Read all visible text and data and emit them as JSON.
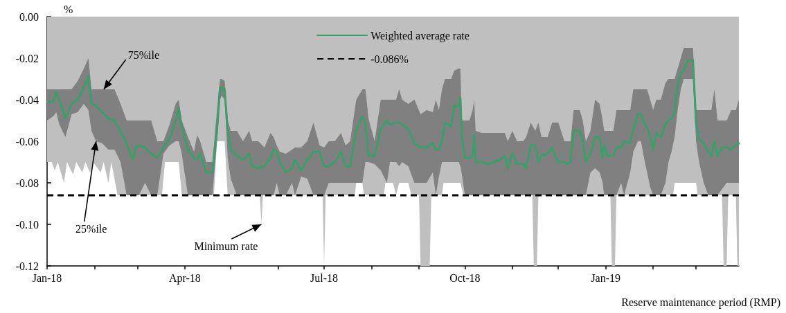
{
  "chart_data": {
    "type": "line",
    "ylabel": "%",
    "xlabel": "Reserve maintenance period (RMP)",
    "xlim": [
      "2018-01-01",
      "2019-03-29"
    ],
    "xticks": [
      {
        "value": "2018-01-01",
        "label": "Jan-18"
      },
      {
        "value": "2018-02-01",
        "label": null
      },
      {
        "value": "2018-03-01",
        "label": null
      },
      {
        "value": "2018-04-01",
        "label": "Apr-18"
      },
      {
        "value": "2018-05-01",
        "label": null
      },
      {
        "value": "2018-06-01",
        "label": null
      },
      {
        "value": "2018-07-01",
        "label": "Jul-18"
      },
      {
        "value": "2018-08-01",
        "label": null
      },
      {
        "value": "2018-09-01",
        "label": null
      },
      {
        "value": "2018-10-01",
        "label": "Oct-18"
      },
      {
        "value": "2018-11-01",
        "label": null
      },
      {
        "value": "2018-12-01",
        "label": null
      },
      {
        "value": "2019-01-01",
        "label": "Jan-19"
      },
      {
        "value": "2019-02-01",
        "label": null
      },
      {
        "value": "2019-03-01",
        "label": null
      }
    ],
    "ylim": [
      -0.12,
      0
    ],
    "yticks": [
      {
        "value": 0,
        "label": "0.00"
      },
      {
        "value": -0.02,
        "label": "-0.02"
      },
      {
        "value": -0.04,
        "label": "-0.04"
      },
      {
        "value": -0.06,
        "label": "-0.06"
      },
      {
        "value": -0.08,
        "label": "-0.08"
      },
      {
        "value": -0.1,
        "label": "-0.10"
      },
      {
        "value": -0.12,
        "label": "-0.12"
      }
    ],
    "legend": "top",
    "series": [
      {
        "type": "area",
        "color": "#bfbfbf",
        "x": [
          "2018-01-01",
          "2018-01-04",
          "2018-01-06",
          "2018-01-08",
          "2018-01-12",
          "2018-01-14",
          "2018-01-18",
          "2018-01-20",
          "2018-01-24",
          "2018-01-26",
          "2018-01-29",
          "2018-01-31",
          "2018-02-05",
          "2018-02-07",
          "2018-02-10",
          "2018-02-12",
          "2018-02-16",
          "2018-03-17",
          "2018-03-19",
          "2018-03-28",
          "2018-03-30",
          "2018-04-20",
          "2018-04-22",
          "2018-04-27",
          "2018-04-29",
          "2018-05-20",
          "2018-05-21",
          "2018-05-22",
          "2018-06-30",
          "2018-07-01",
          "2018-07-02",
          "2018-07-21",
          "2018-07-22",
          "2018-07-26",
          "2018-07-27",
          "2018-08-09",
          "2018-08-10",
          "2018-08-15",
          "2018-08-17",
          "2018-08-19",
          "2018-08-25",
          "2018-08-27",
          "2018-09-01",
          "2018-09-02",
          "2018-09-08",
          "2018-09-09",
          "2018-09-16",
          "2018-09-17",
          "2018-09-28",
          "2018-09-30",
          "2018-11-14",
          "2018-11-15",
          "2018-11-17",
          "2018-11-18",
          "2019-01-04",
          "2019-01-05",
          "2019-01-07",
          "2019-01-08",
          "2019-02-14",
          "2019-02-15",
          "2019-03-01",
          "2019-03-02",
          "2019-03-18",
          "2019-03-19",
          "2019-03-21",
          "2019-03-22",
          "2019-03-27",
          "2019-03-28",
          "2019-03-29"
        ],
        "values": [
          -0.07,
          -0.07,
          -0.074,
          -0.07,
          -0.08,
          -0.07,
          -0.076,
          -0.07,
          -0.075,
          -0.07,
          -0.075,
          -0.07,
          -0.075,
          -0.07,
          -0.08,
          -0.07,
          -0.086,
          -0.086,
          -0.07,
          -0.07,
          -0.086,
          -0.086,
          -0.06,
          -0.06,
          -0.086,
          -0.086,
          -0.1,
          -0.086,
          -0.086,
          -0.12,
          -0.086,
          -0.086,
          -0.08,
          -0.08,
          -0.086,
          -0.086,
          -0.08,
          -0.08,
          -0.086,
          -0.08,
          -0.08,
          -0.086,
          -0.086,
          -0.12,
          -0.12,
          -0.086,
          -0.086,
          -0.08,
          -0.08,
          -0.086,
          -0.086,
          -0.12,
          -0.12,
          -0.086,
          -0.086,
          -0.12,
          -0.12,
          -0.086,
          -0.086,
          -0.08,
          -0.08,
          -0.086,
          -0.086,
          -0.12,
          -0.12,
          -0.086,
          -0.086,
          -0.12,
          -0.12
        ]
      },
      {
        "name": "Weighted average rate",
        "color": "#3a9f6a",
        "x": [
          "2018-01-01",
          "2018-01-05",
          "2018-01-07",
          "2018-01-09",
          "2018-01-13",
          "2018-01-17",
          "2018-01-21",
          "2018-01-25",
          "2018-01-28",
          "2018-01-30",
          "2018-02-02",
          "2018-02-06",
          "2018-02-10",
          "2018-02-14",
          "2018-02-18",
          "2018-02-22",
          "2018-02-26",
          "2018-02-28",
          "2018-03-02",
          "2018-03-06",
          "2018-03-10",
          "2018-03-14",
          "2018-03-18",
          "2018-03-22",
          "2018-03-26",
          "2018-03-28",
          "2018-03-30",
          "2018-04-03",
          "2018-04-07",
          "2018-04-09",
          "2018-04-11",
          "2018-04-15",
          "2018-04-19",
          "2018-04-22",
          "2018-04-24",
          "2018-04-25",
          "2018-04-27",
          "2018-04-29",
          "2018-05-01",
          "2018-05-05",
          "2018-05-09",
          "2018-05-13",
          "2018-05-15",
          "2018-05-19",
          "2018-05-23",
          "2018-05-27",
          "2018-05-29",
          "2018-05-31",
          "2018-06-02",
          "2018-06-06",
          "2018-06-10",
          "2018-06-12",
          "2018-06-16",
          "2018-06-20",
          "2018-06-24",
          "2018-06-28",
          "2018-07-01",
          "2018-07-04",
          "2018-07-08",
          "2018-07-12",
          "2018-07-15",
          "2018-07-18",
          "2018-07-22",
          "2018-07-26",
          "2018-07-28",
          "2018-07-30",
          "2018-08-03",
          "2018-08-07",
          "2018-08-11",
          "2018-08-13",
          "2018-08-17",
          "2018-08-19",
          "2018-08-21",
          "2018-08-25",
          "2018-08-29",
          "2018-09-02",
          "2018-09-06",
          "2018-09-10",
          "2018-09-12",
          "2018-09-14",
          "2018-09-16",
          "2018-09-18",
          "2018-09-22",
          "2018-09-24",
          "2018-09-27",
          "2018-09-28",
          "2018-09-29",
          "2018-10-01",
          "2018-10-04",
          "2018-10-06",
          "2018-10-07",
          "2018-10-08",
          "2018-10-12",
          "2018-10-16",
          "2018-10-20",
          "2018-10-24",
          "2018-10-27",
          "2018-10-29",
          "2018-11-01",
          "2018-11-04",
          "2018-11-08",
          "2018-11-10",
          "2018-11-13",
          "2018-11-16",
          "2018-11-18",
          "2018-11-20",
          "2018-11-24",
          "2018-11-27",
          "2018-12-01",
          "2018-12-05",
          "2018-12-07",
          "2018-12-09",
          "2018-12-11",
          "2018-12-15",
          "2018-12-17",
          "2018-12-19",
          "2018-12-22",
          "2018-12-25",
          "2018-12-28",
          "2018-12-30",
          "2018-12-31",
          "2019-01-02",
          "2019-01-06",
          "2019-01-08",
          "2019-01-11",
          "2019-01-13",
          "2019-01-17",
          "2019-01-19",
          "2019-01-22",
          "2019-01-24",
          "2019-01-26",
          "2019-01-28",
          "2019-01-30",
          "2019-02-01",
          "2019-02-03",
          "2019-02-06",
          "2019-02-09",
          "2019-02-11",
          "2019-02-13",
          "2019-02-15",
          "2019-02-17",
          "2019-02-19",
          "2019-02-21",
          "2019-02-23",
          "2019-02-24",
          "2019-02-26",
          "2019-02-27",
          "2019-03-01",
          "2019-03-03",
          "2019-03-06",
          "2019-03-09",
          "2019-03-11",
          "2019-03-13",
          "2019-03-15",
          "2019-03-18",
          "2019-03-21",
          "2019-03-24",
          "2019-03-27",
          "2019-03-29"
        ],
        "values": [
          -0.041,
          -0.041,
          -0.036,
          -0.04,
          -0.049,
          -0.042,
          -0.04,
          -0.034,
          -0.029,
          -0.042,
          -0.043,
          -0.046,
          -0.049,
          -0.05,
          -0.055,
          -0.061,
          -0.069,
          -0.063,
          -0.062,
          -0.063,
          -0.066,
          -0.068,
          -0.063,
          -0.059,
          -0.05,
          -0.044,
          -0.053,
          -0.064,
          -0.068,
          -0.069,
          -0.066,
          -0.075,
          -0.075,
          -0.055,
          -0.034,
          -0.034,
          -0.035,
          -0.055,
          -0.064,
          -0.067,
          -0.069,
          -0.066,
          -0.072,
          -0.073,
          -0.072,
          -0.068,
          -0.064,
          -0.065,
          -0.07,
          -0.075,
          -0.073,
          -0.069,
          -0.074,
          -0.069,
          -0.065,
          -0.065,
          -0.072,
          -0.072,
          -0.07,
          -0.065,
          -0.072,
          -0.072,
          -0.055,
          -0.048,
          -0.051,
          -0.067,
          -0.067,
          -0.054,
          -0.05,
          -0.052,
          -0.051,
          -0.051,
          -0.052,
          -0.054,
          -0.061,
          -0.063,
          -0.063,
          -0.061,
          -0.064,
          -0.064,
          -0.06,
          -0.051,
          -0.053,
          -0.043,
          -0.043,
          -0.039,
          -0.058,
          -0.068,
          -0.068,
          -0.067,
          -0.057,
          -0.07,
          -0.07,
          -0.071,
          -0.07,
          -0.069,
          -0.067,
          -0.073,
          -0.066,
          -0.071,
          -0.071,
          -0.073,
          -0.062,
          -0.062,
          -0.07,
          -0.067,
          -0.066,
          -0.063,
          -0.07,
          -0.07,
          -0.071,
          -0.07,
          -0.055,
          -0.055,
          -0.06,
          -0.07,
          -0.066,
          -0.058,
          -0.058,
          -0.068,
          -0.062,
          -0.067,
          -0.067,
          -0.063,
          -0.063,
          -0.06,
          -0.061,
          -0.054,
          -0.047,
          -0.047,
          -0.051,
          -0.053,
          -0.058,
          -0.064,
          -0.056,
          -0.058,
          -0.052,
          -0.05,
          -0.049,
          -0.046,
          -0.033,
          -0.027,
          -0.026,
          -0.022,
          -0.021,
          -0.021,
          -0.021,
          -0.051,
          -0.059,
          -0.061,
          -0.065,
          -0.067,
          -0.06,
          -0.067,
          -0.063,
          -0.063,
          -0.064,
          -0.062,
          -0.061
        ],
        "upper": [
          -0.035,
          -0.035,
          -0.035,
          -0.035,
          -0.035,
          -0.035,
          -0.031,
          -0.025,
          -0.02,
          -0.035,
          -0.035,
          -0.035,
          -0.035,
          -0.035,
          -0.042,
          -0.05,
          -0.05,
          -0.05,
          -0.05,
          -0.05,
          -0.05,
          -0.06,
          -0.06,
          -0.052,
          -0.042,
          -0.04,
          -0.05,
          -0.058,
          -0.065,
          -0.057,
          -0.06,
          -0.07,
          -0.07,
          -0.045,
          -0.03,
          -0.03,
          -0.031,
          -0.05,
          -0.055,
          -0.055,
          -0.06,
          -0.055,
          -0.06,
          -0.06,
          -0.063,
          -0.056,
          -0.058,
          -0.062,
          -0.065,
          -0.066,
          -0.064,
          -0.063,
          -0.063,
          -0.06,
          -0.051,
          -0.062,
          -0.063,
          -0.06,
          -0.06,
          -0.056,
          -0.062,
          -0.06,
          -0.04,
          -0.035,
          -0.035,
          -0.049,
          -0.06,
          -0.04,
          -0.04,
          -0.04,
          -0.04,
          -0.035,
          -0.04,
          -0.042,
          -0.04,
          -0.047,
          -0.045,
          -0.046,
          -0.04,
          -0.045,
          -0.035,
          -0.03,
          -0.03,
          -0.026,
          -0.025,
          -0.025,
          -0.05,
          -0.05,
          -0.05,
          -0.045,
          -0.04,
          -0.055,
          -0.056,
          -0.056,
          -0.056,
          -0.056,
          -0.056,
          -0.06,
          -0.055,
          -0.06,
          -0.06,
          -0.058,
          -0.051,
          -0.055,
          -0.051,
          -0.058,
          -0.058,
          -0.051,
          -0.051,
          -0.06,
          -0.06,
          -0.06,
          -0.045,
          -0.045,
          -0.05,
          -0.06,
          -0.055,
          -0.04,
          -0.042,
          -0.05,
          -0.055,
          -0.055,
          -0.055,
          -0.045,
          -0.045,
          -0.045,
          -0.045,
          -0.035,
          -0.035,
          -0.035,
          -0.035,
          -0.035,
          -0.04,
          -0.045,
          -0.04,
          -0.04,
          -0.032,
          -0.03,
          -0.03,
          -0.03,
          -0.025,
          -0.02,
          -0.015,
          -0.015,
          -0.015,
          -0.015,
          -0.015,
          -0.045,
          -0.045,
          -0.045,
          -0.045,
          -0.045,
          -0.035,
          -0.05,
          -0.05,
          -0.05,
          -0.045,
          -0.045,
          -0.04
        ],
        "lower": [
          -0.05,
          -0.048,
          -0.046,
          -0.052,
          -0.058,
          -0.047,
          -0.046,
          -0.042,
          -0.045,
          -0.055,
          -0.06,
          -0.061,
          -0.064,
          -0.064,
          -0.07,
          -0.086,
          -0.086,
          -0.086,
          -0.086,
          -0.08,
          -0.086,
          -0.086,
          -0.066,
          -0.062,
          -0.06,
          -0.06,
          -0.066,
          -0.086,
          -0.086,
          -0.086,
          -0.086,
          -0.086,
          -0.086,
          -0.06,
          -0.04,
          -0.038,
          -0.04,
          -0.068,
          -0.078,
          -0.086,
          -0.086,
          -0.086,
          -0.086,
          -0.086,
          -0.086,
          -0.086,
          -0.086,
          -0.08,
          -0.086,
          -0.086,
          -0.08,
          -0.086,
          -0.077,
          -0.078,
          -0.086,
          -0.086,
          -0.086,
          -0.08,
          -0.08,
          -0.08,
          -0.08,
          -0.08,
          -0.08,
          -0.08,
          -0.07,
          -0.07,
          -0.071,
          -0.074,
          -0.08,
          -0.07,
          -0.07,
          -0.072,
          -0.07,
          -0.072,
          -0.08,
          -0.08,
          -0.08,
          -0.075,
          -0.086,
          -0.077,
          -0.07,
          -0.07,
          -0.07,
          -0.07,
          -0.07,
          -0.072,
          -0.076,
          -0.086,
          -0.086,
          -0.086,
          -0.086,
          -0.086,
          -0.086,
          -0.086,
          -0.086,
          -0.086,
          -0.086,
          -0.086,
          -0.086,
          -0.086,
          -0.086,
          -0.086,
          -0.086,
          -0.086,
          -0.086,
          -0.086,
          -0.086,
          -0.086,
          -0.086,
          -0.086,
          -0.086,
          -0.086,
          -0.086,
          -0.086,
          -0.086,
          -0.086,
          -0.075,
          -0.073,
          -0.075,
          -0.08,
          -0.086,
          -0.086,
          -0.086,
          -0.086,
          -0.08,
          -0.086,
          -0.075,
          -0.065,
          -0.06,
          -0.06,
          -0.068,
          -0.075,
          -0.082,
          -0.086,
          -0.086,
          -0.086,
          -0.08,
          -0.07,
          -0.065,
          -0.058,
          -0.045,
          -0.035,
          -0.03,
          -0.03,
          -0.03,
          -0.03,
          -0.03,
          -0.06,
          -0.07,
          -0.08,
          -0.086,
          -0.086,
          -0.086,
          -0.086,
          -0.083,
          -0.08,
          -0.08,
          -0.08,
          -0.08
        ]
      }
    ],
    "ref_lines": [
      {
        "axis": "y",
        "value": -0.086,
        "label": "-0.086%",
        "color": "#000000",
        "line_style": "dashed"
      }
    ],
    "annotations": [
      {
        "text": "75%ile",
        "x": "2018-02-07",
        "y": -0.035
      },
      {
        "text": "25%ile",
        "x": "2018-02-02",
        "y": -0.06
      },
      {
        "text": "Minimum rate",
        "x": "2018-05-21",
        "y": -0.1
      }
    ]
  }
}
